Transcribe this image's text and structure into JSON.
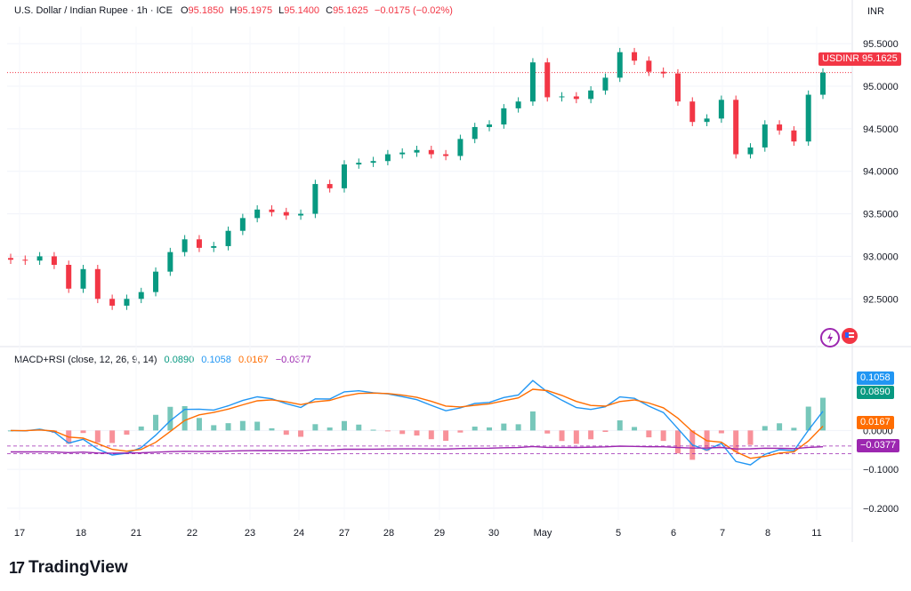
{
  "header": {
    "symbol": "U.S. Dollar / Indian Rupee · 1h · ICE",
    "o_label": "O",
    "o": "95.1850",
    "h_label": "H",
    "h": "95.1975",
    "l_label": "L",
    "l": "95.1400",
    "c_label": "C",
    "c": "95.1625",
    "change": "−0.0175 (−0.02%)"
  },
  "currency": "INR",
  "price_tag": {
    "symbol": "USDINR",
    "value": "95.1625"
  },
  "macd_legend": {
    "label": "MACD+RSI (close, 12, 26, 9, 14)",
    "v1": "0.0890",
    "v2": "0.1058",
    "v3": "0.0167",
    "v4": "−0.0377"
  },
  "macd_tags": {
    "macd": "0.1058",
    "signal": "0.0890",
    "rsi": "0.0167",
    "hist": "−0.0377"
  },
  "brand": "TradingView",
  "colors": {
    "up": "#089981",
    "down": "#f23645",
    "macd": "#2962ff",
    "signal": "#ff6d00",
    "rsi": "#9c27b0"
  },
  "icons": [
    "lightning-icon",
    "flag-icon"
  ],
  "chart_data": {
    "type": "candlestick",
    "price_axis": {
      "ticks": [
        "95.5000",
        "95.0000",
        "94.5000",
        "94.0000",
        "93.5000",
        "93.0000",
        "92.5000"
      ]
    },
    "macd_axis": {
      "ticks": [
        "0.0000",
        "−0.1000",
        "−0.2000"
      ]
    },
    "x_labels": [
      "17",
      "18",
      "21",
      "22",
      "23",
      "24",
      "27",
      "28",
      "29",
      "30",
      "May",
      "5",
      "6",
      "7",
      "8",
      "11"
    ],
    "price_closes": [
      92.96,
      92.95,
      93.0,
      92.9,
      92.62,
      92.85,
      92.5,
      92.42,
      92.5,
      92.58,
      92.82,
      93.05,
      93.2,
      93.1,
      93.12,
      93.3,
      93.45,
      93.55,
      93.52,
      93.48,
      93.5,
      93.85,
      93.8,
      94.08,
      94.1,
      94.12,
      94.2,
      94.22,
      94.25,
      94.2,
      94.18,
      94.38,
      94.52,
      94.55,
      94.74,
      94.82,
      95.28,
      94.87,
      94.88,
      94.85,
      94.95,
      95.1,
      95.4,
      95.3,
      95.17,
      95.15,
      94.82,
      94.58,
      94.62,
      94.84,
      94.2,
      94.28,
      94.55,
      94.48,
      94.35,
      94.9,
      95.16
    ],
    "rsi_reference_lines": [
      -0.04,
      -0.06
    ],
    "macd_range": [
      -0.23,
      0.17
    ],
    "price_range": [
      92.2,
      95.7
    ]
  }
}
